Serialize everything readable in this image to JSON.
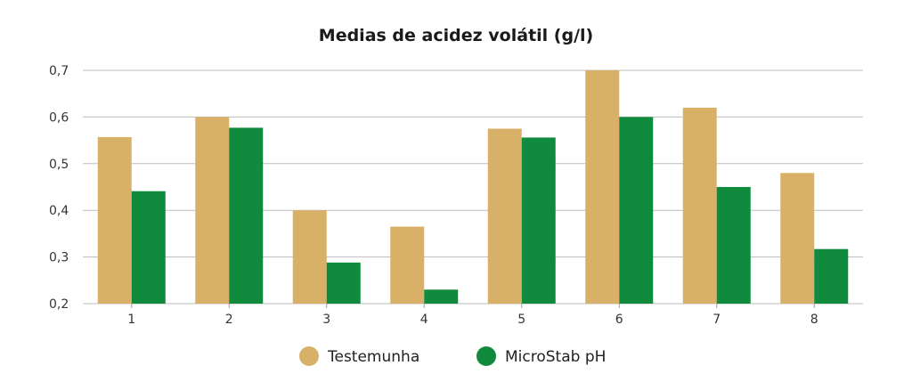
{
  "chart_data": {
    "type": "bar",
    "title": "Medias de acidez volátil (g/l)",
    "xlabel": "",
    "ylabel": "",
    "categories": [
      "1",
      "2",
      "3",
      "4",
      "5",
      "6",
      "7",
      "8"
    ],
    "series": [
      {
        "name": "Testemunha",
        "color": "#d8b068",
        "values": [
          0.557,
          0.6,
          0.4,
          0.365,
          0.575,
          0.7,
          0.62,
          0.48
        ]
      },
      {
        "name": "MicroStab pH",
        "color": "#108a3c",
        "values": [
          0.441,
          0.577,
          0.288,
          0.23,
          0.556,
          0.6,
          0.45,
          0.317
        ]
      }
    ],
    "ylim": [
      0.2,
      0.7
    ],
    "yticks": [
      0.2,
      0.3,
      0.4,
      0.5,
      0.6,
      0.7
    ],
    "ytick_labels": [
      "0,2",
      "0,3",
      "0,4",
      "0,5",
      "0,6",
      "0,7"
    ],
    "grid": true,
    "legend_position": "bottom-center"
  }
}
